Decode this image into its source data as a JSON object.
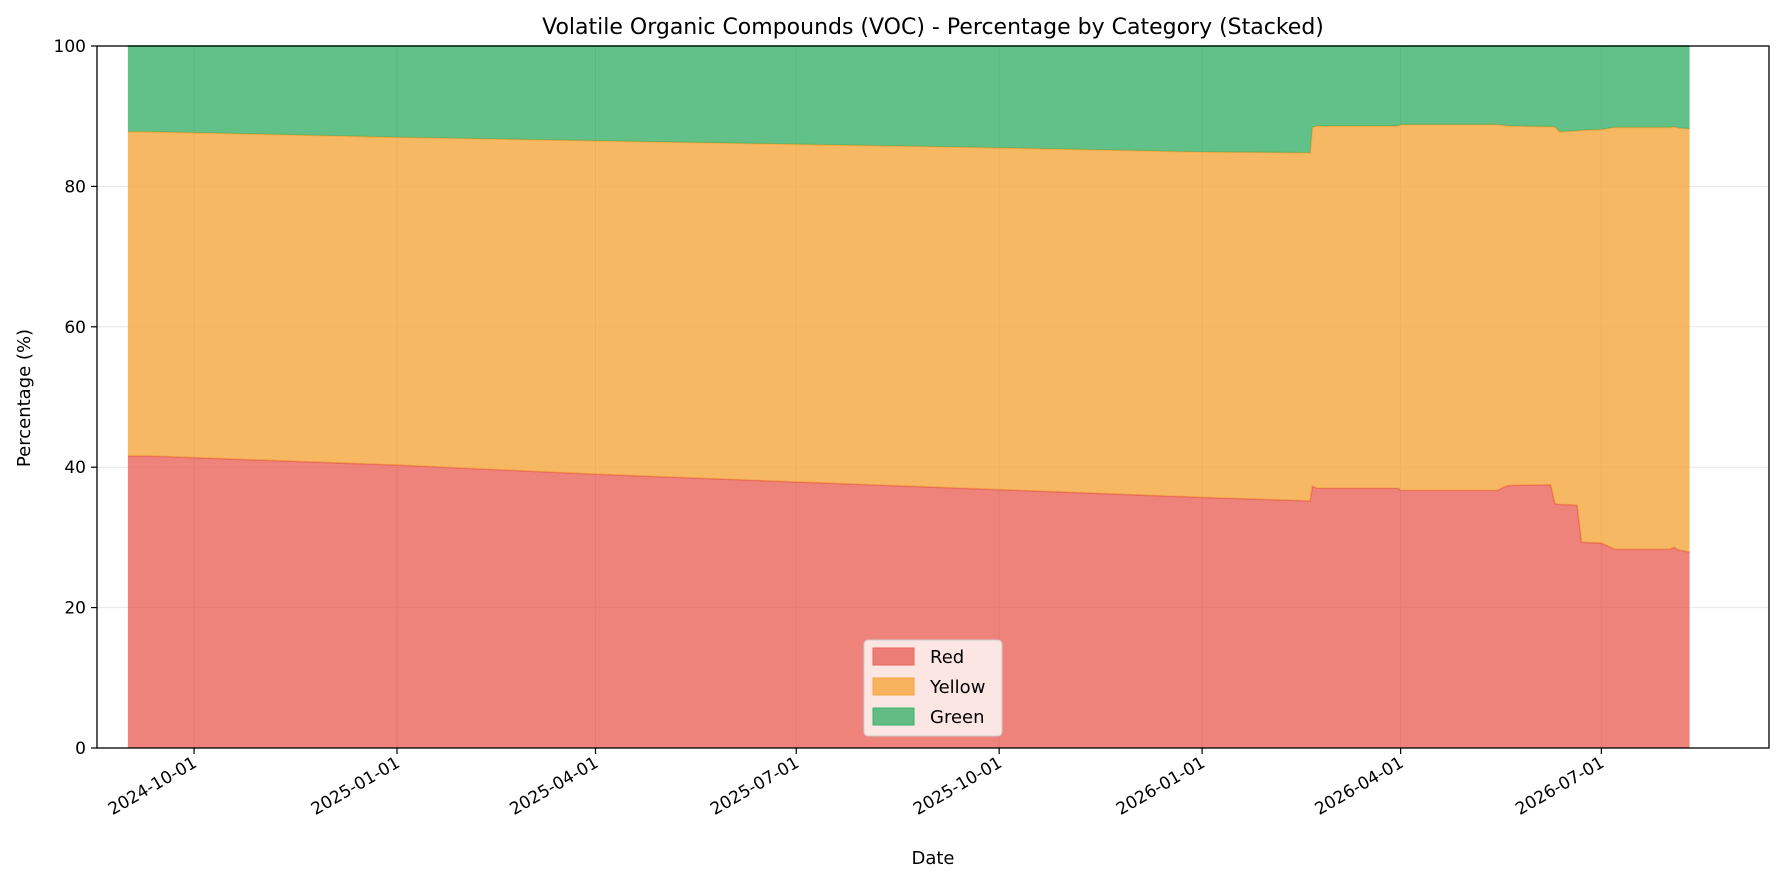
{
  "chart_data": {
    "type": "area",
    "stacked": true,
    "title": "Volatile Organic Compounds (VOC) - Percentage by Category (Stacked)",
    "xlabel": "Date",
    "ylabel": "Percentage (%)",
    "xlim": [
      "2024-08-18",
      "2026-09-15"
    ],
    "ylim": [
      0,
      100
    ],
    "x_ticks": [
      "2024-10-01",
      "2025-01-01",
      "2025-04-01",
      "2025-07-01",
      "2025-10-01",
      "2026-01-01",
      "2026-04-01",
      "2026-07-01"
    ],
    "y_ticks": [
      0,
      20,
      40,
      60,
      80,
      100
    ],
    "grid": true,
    "legend_position": "lower center",
    "x": [
      "2024-09-01",
      "2024-09-10",
      "2025-01-01",
      "2025-04-01",
      "2025-07-01",
      "2025-10-01",
      "2026-01-01",
      "2026-02-19",
      "2026-02-20",
      "2026-02-22",
      "2026-03-31",
      "2026-04-01",
      "2026-05-15",
      "2026-05-18",
      "2026-05-20",
      "2026-06-08",
      "2026-06-10",
      "2026-06-12",
      "2026-06-20",
      "2026-06-22",
      "2026-07-01",
      "2026-07-07",
      "2026-08-01",
      "2026-08-03",
      "2026-08-05",
      "2026-08-10"
    ],
    "series": [
      {
        "name": "Red",
        "color": "#e8645a",
        "values": [
          41.6,
          41.6,
          40.3,
          39.0,
          37.9,
          36.8,
          35.7,
          35.2,
          37.3,
          37.0,
          37.0,
          36.7,
          36.7,
          37.2,
          37.4,
          37.5,
          34.8,
          34.7,
          34.6,
          29.3,
          29.2,
          28.3,
          28.3,
          28.6,
          28.2,
          27.9
        ]
      },
      {
        "name": "Yellow",
        "color": "#f5a63c",
        "values": [
          46.2,
          46.2,
          46.7,
          47.5,
          48.1,
          48.7,
          49.2,
          49.6,
          51.1,
          51.6,
          51.6,
          52.1,
          52.1,
          51.5,
          51.2,
          51.0,
          53.7,
          53.1,
          53.3,
          58.7,
          58.9,
          60.1,
          60.1,
          59.9,
          60.1,
          60.3
        ]
      },
      {
        "name": "Green",
        "color": "#3bb26c",
        "values": [
          12.2,
          12.2,
          13.0,
          13.5,
          14.0,
          14.5,
          15.1,
          15.2,
          11.6,
          11.4,
          11.4,
          11.2,
          11.2,
          11.3,
          11.4,
          11.5,
          11.5,
          12.2,
          12.1,
          12.0,
          11.9,
          11.6,
          11.6,
          11.5,
          11.7,
          11.8
        ]
      }
    ]
  }
}
